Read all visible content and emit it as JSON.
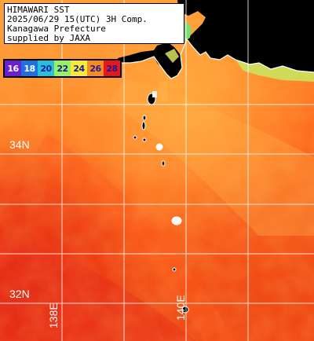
{
  "title": {
    "line1": "HIMAWARI SST",
    "line2": "2025/06/29 15(UTC) 3H Comp.",
    "line3": "Kanagawa Prefecture",
    "line4": "supplied by JAXA"
  },
  "legend": {
    "items": [
      {
        "label": "16",
        "color": "#6a1fd0"
      },
      {
        "label": "18",
        "color": "#1f6fe0"
      },
      {
        "label": "20",
        "color": "#27c0d8"
      },
      {
        "label": "22",
        "color": "#9af060"
      },
      {
        "label": "24",
        "color": "#f8e838"
      },
      {
        "label": "26",
        "color": "#f88a20"
      },
      {
        "label": "28",
        "color": "#e81818"
      }
    ]
  },
  "grid": {
    "lat_labels": [
      "34N",
      "32N"
    ],
    "lon_labels": [
      "138E",
      "140E"
    ]
  },
  "colors": {
    "land": "#000000",
    "coast": "#ffffff",
    "sea_warm": "#ff6a1a",
    "sea_hot": "#e62d12",
    "sea_cool": "#ffaa2e",
    "grid": "#ffffff"
  }
}
